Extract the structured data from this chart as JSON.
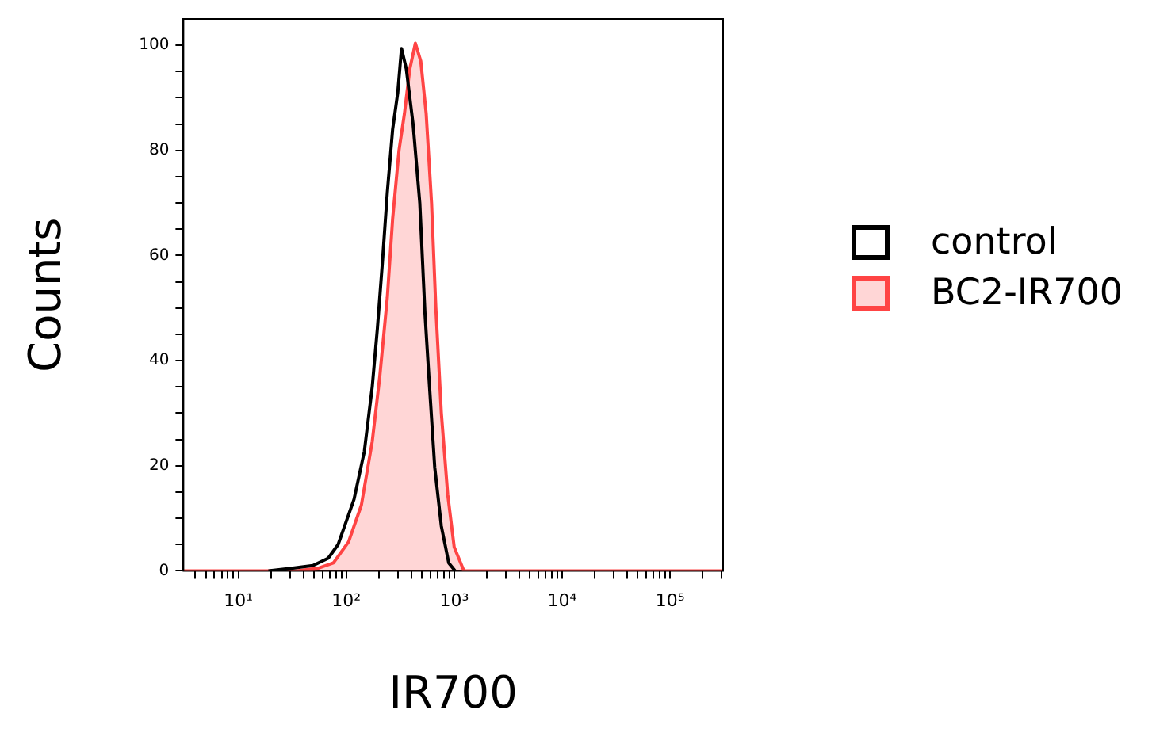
{
  "chart_data": {
    "type": "line",
    "xlabel": "IR700",
    "ylabel": "Counts",
    "log": "x",
    "grid": false,
    "legend": "right",
    "marker": "none",
    "xlim": [
      3.1,
      310000
    ],
    "ylim": [
      0,
      105
    ],
    "xticks": [
      {
        "value": 4,
        "label": null
      },
      {
        "value": 5,
        "label": null
      },
      {
        "value": 6,
        "label": null
      },
      {
        "value": 7,
        "label": null
      },
      {
        "value": 8,
        "label": null
      },
      {
        "value": 9,
        "label": null
      },
      {
        "value": 10,
        "label": "10¹"
      },
      {
        "value": 20,
        "label": null
      },
      {
        "value": 30,
        "label": null
      },
      {
        "value": 40,
        "label": null
      },
      {
        "value": 50,
        "label": null
      },
      {
        "value": 60,
        "label": null
      },
      {
        "value": 70,
        "label": null
      },
      {
        "value": 80,
        "label": null
      },
      {
        "value": 90,
        "label": null
      },
      {
        "value": 100,
        "label": "10²"
      },
      {
        "value": 200,
        "label": null
      },
      {
        "value": 300,
        "label": null
      },
      {
        "value": 400,
        "label": null
      },
      {
        "value": 500,
        "label": null
      },
      {
        "value": 600,
        "label": null
      },
      {
        "value": 700,
        "label": null
      },
      {
        "value": 800,
        "label": null
      },
      {
        "value": 900,
        "label": null
      },
      {
        "value": 1000,
        "label": "10³"
      },
      {
        "value": 2000,
        "label": null
      },
      {
        "value": 3000,
        "label": null
      },
      {
        "value": 4000,
        "label": null
      },
      {
        "value": 5000,
        "label": null
      },
      {
        "value": 6000,
        "label": null
      },
      {
        "value": 7000,
        "label": null
      },
      {
        "value": 8000,
        "label": null
      },
      {
        "value": 9000,
        "label": null
      },
      {
        "value": 10000,
        "label": "10⁴"
      },
      {
        "value": 20000,
        "label": null
      },
      {
        "value": 30000,
        "label": null
      },
      {
        "value": 40000,
        "label": null
      },
      {
        "value": 50000,
        "label": null
      },
      {
        "value": 60000,
        "label": null
      },
      {
        "value": 70000,
        "label": null
      },
      {
        "value": 80000,
        "label": null
      },
      {
        "value": 90000,
        "label": null
      },
      {
        "value": 100000,
        "label": "10⁵"
      },
      {
        "value": 200000,
        "label": null
      },
      {
        "value": 300000,
        "label": null
      }
    ],
    "yticks": [
      0,
      {
        "value": 5,
        "label": null
      },
      {
        "value": 10,
        "label": null
      },
      {
        "value": 15,
        "label": null
      },
      20,
      {
        "value": 25,
        "label": null
      },
      {
        "value": 30,
        "label": null
      },
      {
        "value": 35,
        "label": null
      },
      40,
      {
        "value": 45,
        "label": null
      },
      {
        "value": 50,
        "label": null
      },
      {
        "value": 55,
        "label": null
      },
      60,
      {
        "value": 65,
        "label": null
      },
      {
        "value": 70,
        "label": null
      },
      {
        "value": 75,
        "label": null
      },
      80,
      {
        "value": 85,
        "label": null
      },
      {
        "value": 90,
        "label": null
      },
      {
        "value": 95,
        "label": null
      },
      100
    ],
    "series": [
      {
        "name": "control",
        "type": "line",
        "color": "#000000",
        "x": [
          19,
          32,
          49,
          68,
          84,
          118,
          147,
          174,
          194,
          215,
          240,
          269,
          300,
          325,
          360,
          416,
          480,
          536,
          591,
          660,
          760,
          890,
          1020
        ],
        "values": [
          0,
          0.5,
          1,
          2.4,
          5,
          13.6,
          22.7,
          35,
          46,
          58,
          72,
          84,
          91,
          99.4,
          95.5,
          85,
          70,
          49,
          35,
          19.7,
          8.5,
          1.5,
          0
        ]
      },
      {
        "name": "BC2-IR700",
        "type": "area",
        "color": "#ff4444",
        "x": [
          3.1,
          35,
          55,
          76,
          105,
          138,
          174,
          204,
          240,
          269,
          308,
          346,
          388,
          437,
          490,
          550,
          617,
          676,
          760,
          871,
          1000,
          1230,
          310000
        ],
        "values": [
          0,
          0,
          0.5,
          1.5,
          5.5,
          12.5,
          24.6,
          36.8,
          52,
          67,
          80,
          87,
          95.5,
          100.4,
          97,
          87,
          70,
          50,
          30,
          14.5,
          4.5,
          0,
          0
        ]
      }
    ]
  }
}
